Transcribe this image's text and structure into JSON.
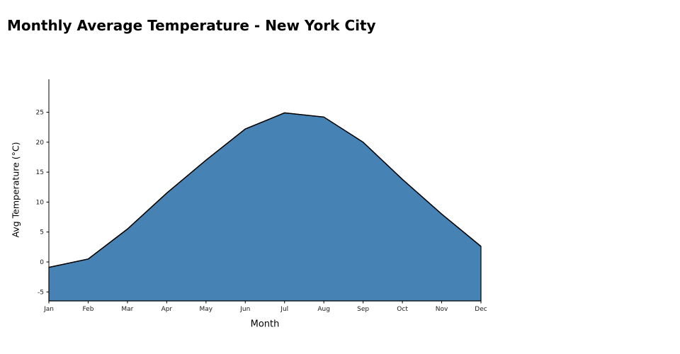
{
  "title": "Monthly Average Temperature - New York City",
  "chart_data": {
    "type": "area",
    "title": "Monthly Average Temperature - New York City",
    "xlabel": "Month",
    "ylabel": "Avg Temperature (°C)",
    "categories": [
      "Jan",
      "Feb",
      "Mar",
      "Apr",
      "May",
      "Jun",
      "Jul",
      "Aug",
      "Sep",
      "Oct",
      "Nov",
      "Dec"
    ],
    "values": [
      -0.9,
      0.5,
      5.5,
      11.5,
      17.0,
      22.2,
      24.9,
      24.2,
      20.0,
      13.8,
      8.0,
      2.6
    ],
    "ylim": [
      -6.5,
      30.5
    ],
    "yticks": [
      -5,
      0,
      5,
      10,
      15,
      20,
      25
    ],
    "grid": false,
    "legend": false,
    "fill_color": "#4682B4",
    "edge_color": "#000000",
    "axis_color": "#000000",
    "tick_label_color": "#1a1a1a"
  }
}
